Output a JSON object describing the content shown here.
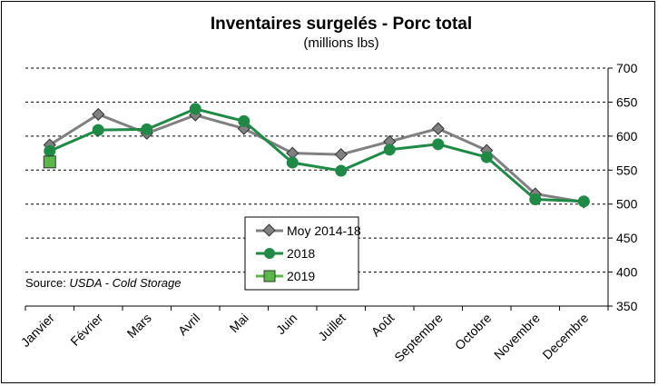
{
  "chart_data": {
    "type": "line",
    "title": "Inventaires surgelés - Porc total",
    "subtitle": "(millions lbs)",
    "categories": [
      "Janvier",
      "Février",
      "Mars",
      "Avril",
      "Mai",
      "Juin",
      "Juillet",
      "Août",
      "Septembre",
      "Octobre",
      "Novembre",
      "Decembre"
    ],
    "ylim": [
      350,
      700
    ],
    "yticks": [
      350,
      400,
      450,
      500,
      550,
      600,
      650,
      700
    ],
    "y_axis_side": "right",
    "grid": "horizontal dashed",
    "legend_position": "bottom-center",
    "series": [
      {
        "name": "Moy 2014-18",
        "color": "#808080",
        "marker": "diamond",
        "values": [
          587,
          632,
          604,
          631,
          611,
          575,
          573,
          592,
          611,
          579,
          515,
          503
        ]
      },
      {
        "name": "2018",
        "color": "#1e8a46",
        "marker": "circle",
        "values": [
          578,
          609,
          610,
          640,
          622,
          561,
          549,
          580,
          588,
          569,
          507,
          504
        ]
      },
      {
        "name": "2019",
        "color": "#5ab848",
        "marker": "square",
        "values": [
          562,
          null,
          null,
          null,
          null,
          null,
          null,
          null,
          null,
          null,
          null,
          null
        ]
      }
    ],
    "source_prefix": "Source: ",
    "source_name": "USDA - Cold Storage"
  }
}
